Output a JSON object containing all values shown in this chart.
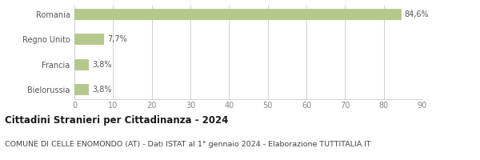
{
  "categories": [
    "Bielorussia",
    "Francia",
    "Regno Unito",
    "Romania"
  ],
  "values": [
    3.8,
    3.8,
    7.7,
    84.6
  ],
  "labels": [
    "3,8%",
    "3,8%",
    "7,7%",
    "84,6%"
  ],
  "bar_color": "#b5c98e",
  "background_color": "#ffffff",
  "grid_color": "#cccccc",
  "xlim": [
    0,
    90
  ],
  "xticks": [
    0,
    10,
    20,
    30,
    40,
    50,
    60,
    70,
    80,
    90
  ],
  "title": "Cittadini Stranieri per Cittadinanza - 2024",
  "subtitle": "COMUNE DI CELLE ENOMONDO (AT) - Dati ISTAT al 1° gennaio 2024 - Elaborazione TUTTITALIA.IT",
  "title_fontsize": 8.5,
  "subtitle_fontsize": 6.8,
  "label_fontsize": 7.0,
  "tick_fontsize": 7.0,
  "bar_height": 0.45
}
